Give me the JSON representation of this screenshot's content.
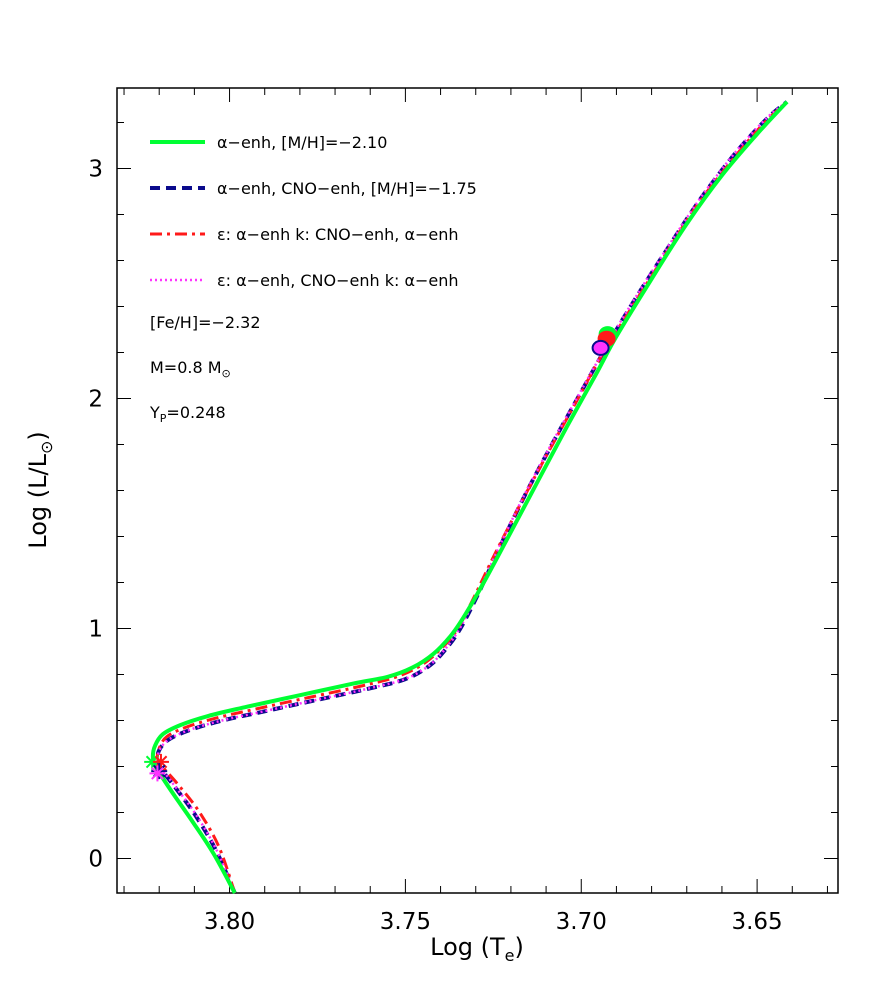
{
  "chart_data": {
    "type": "line",
    "xlabel": "Log (T",
    "xlabel_sub": "e",
    "xlabel_end": ")",
    "ylabel": "Log (L/L",
    "ylabel_sub": "⊙",
    "ylabel_end": ")",
    "xlim": [
      3.832,
      3.627
    ],
    "ylim": [
      -0.15,
      3.35
    ],
    "x_ticks": [
      3.8,
      3.75,
      3.7,
      3.65
    ],
    "x_tick_labels": [
      "3.80",
      "3.75",
      "3.70",
      "3.65"
    ],
    "y_ticks": [
      0,
      1,
      2,
      3
    ],
    "y_tick_labels": [
      "0",
      "1",
      "2",
      "3"
    ],
    "grid": false,
    "legend_position": "top-left",
    "series": [
      {
        "name": "α−enh, [M/H]=−2.10",
        "color": "#00ff33",
        "style": "solid",
        "x": [
          3.7985,
          3.8045,
          3.8105,
          3.8155,
          3.819,
          3.821,
          3.8218,
          3.8212,
          3.819,
          3.814,
          3.806,
          3.795,
          3.78,
          3.765,
          3.755,
          3.748,
          3.742,
          3.737,
          3.733,
          3.727,
          3.72,
          3.712,
          3.704,
          3.696,
          3.69,
          3.68,
          3.67,
          3.66,
          3.65,
          3.6415
        ],
        "y": [
          -0.15,
          0.02,
          0.16,
          0.27,
          0.35,
          0.4,
          0.44,
          0.49,
          0.54,
          0.58,
          0.62,
          0.66,
          0.71,
          0.76,
          0.79,
          0.83,
          0.89,
          0.97,
          1.06,
          1.22,
          1.42,
          1.65,
          1.88,
          2.1,
          2.27,
          2.52,
          2.76,
          2.97,
          3.15,
          3.29
        ]
      },
      {
        "name": "α−enh, CNO−enh, [M/H]=−1.75",
        "color": "#0a0a8c",
        "style": "dashed",
        "x": [
          3.7985,
          3.804,
          3.8098,
          3.815,
          3.8185,
          3.82,
          3.8205,
          3.8197,
          3.817,
          3.811,
          3.802,
          3.79,
          3.775,
          3.76,
          3.75,
          3.743,
          3.738,
          3.734,
          3.729,
          3.723,
          3.716,
          3.708,
          3.7,
          3.693,
          3.686,
          3.676,
          3.666,
          3.656,
          3.647,
          3.6415
        ],
        "y": [
          -0.15,
          0.04,
          0.19,
          0.3,
          0.37,
          0.41,
          0.44,
          0.48,
          0.52,
          0.56,
          0.6,
          0.64,
          0.69,
          0.74,
          0.78,
          0.84,
          0.92,
          1.01,
          1.16,
          1.36,
          1.58,
          1.81,
          2.03,
          2.22,
          2.4,
          2.64,
          2.87,
          3.07,
          3.22,
          3.29
        ]
      },
      {
        "name": "ε: α−enh   k: CNO−enh, α−enh",
        "color": "#ff1a1a",
        "style": "dashdot",
        "x": [
          3.7985,
          3.803,
          3.8085,
          3.814,
          3.818,
          3.8198,
          3.8205,
          3.82,
          3.8178,
          3.8125,
          3.804,
          3.7925,
          3.7775,
          3.7625,
          3.7525,
          3.7455,
          3.74,
          3.7355,
          3.731,
          3.725,
          3.718,
          3.71,
          3.702,
          3.6945,
          3.688,
          3.678,
          3.668,
          3.658,
          3.6485,
          3.6415
        ],
        "y": [
          -0.15,
          0.05,
          0.2,
          0.31,
          0.38,
          0.41,
          0.44,
          0.48,
          0.53,
          0.57,
          0.61,
          0.65,
          0.7,
          0.75,
          0.79,
          0.84,
          0.91,
          0.99,
          1.12,
          1.31,
          1.52,
          1.75,
          1.97,
          2.18,
          2.34,
          2.58,
          2.82,
          3.02,
          3.19,
          3.29
        ]
      },
      {
        "name": "ε: α−enh, CNO−enh   k: α−enh",
        "color": "#ff33ff",
        "style": "dotted",
        "x": [
          3.7985,
          3.8038,
          3.8095,
          3.8148,
          3.8183,
          3.8199,
          3.8204,
          3.8196,
          3.817,
          3.8112,
          3.8022,
          3.7902,
          3.7752,
          3.7602,
          3.7502,
          3.7432,
          3.7382,
          3.7342,
          3.7292,
          3.7232,
          3.7162,
          3.7082,
          3.7002,
          3.6932,
          3.6862,
          3.6762,
          3.6662,
          3.6562,
          3.6472,
          3.6415
        ],
        "y": [
          -0.15,
          0.04,
          0.19,
          0.3,
          0.37,
          0.41,
          0.44,
          0.48,
          0.52,
          0.56,
          0.6,
          0.64,
          0.69,
          0.74,
          0.78,
          0.84,
          0.92,
          1.01,
          1.16,
          1.36,
          1.58,
          1.81,
          2.03,
          2.22,
          2.4,
          2.64,
          2.87,
          3.07,
          3.22,
          3.29
        ]
      }
    ],
    "turnoff_markers": [
      {
        "x": 3.822,
        "y": 0.42,
        "color": "#00ff33"
      },
      {
        "x": 3.8195,
        "y": 0.42,
        "color": "#ff1a1a"
      },
      {
        "x": 3.82,
        "y": 0.38,
        "color": "#0a0a8c"
      },
      {
        "x": 3.8205,
        "y": 0.37,
        "color": "#ff33ff"
      }
    ],
    "bump_markers": [
      {
        "x": 3.6925,
        "y": 2.28,
        "color": "#00ff33"
      },
      {
        "x": 3.6928,
        "y": 2.26,
        "color": "#ff1a1a"
      },
      {
        "x": 3.6945,
        "y": 2.22,
        "color": "#0a0a8c",
        "fill": "#ff33ff"
      }
    ],
    "notes": [
      {
        "text": "[Fe/H]=−2.32"
      },
      {
        "text": "M=0.8 M",
        "sub": "⊙"
      },
      {
        "text": "Y",
        "sub": "P",
        "text_end": "=0.248"
      }
    ]
  }
}
